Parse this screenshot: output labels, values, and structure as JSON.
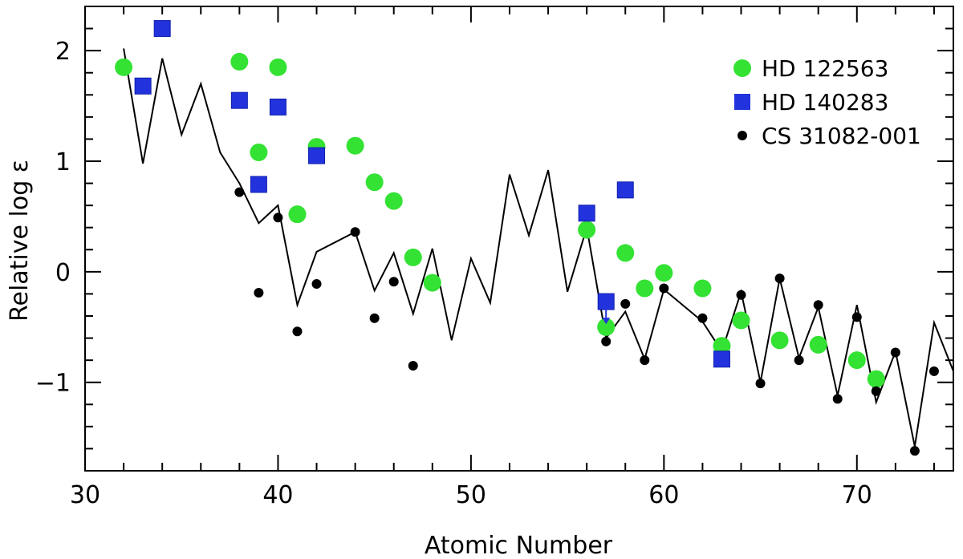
{
  "chart_data": {
    "type": "scatter",
    "xlabel": "Atomic Number",
    "ylabel": "Relative log ε",
    "xlim": [
      30,
      75
    ],
    "ylim": [
      -1.8,
      2.4
    ],
    "x_ticks": [
      30,
      40,
      50,
      60,
      70
    ],
    "y_ticks": [
      -1,
      0,
      1,
      2
    ],
    "y_tick_labels": [
      "−1",
      "0",
      "1",
      "2"
    ],
    "legend_position": "top-right",
    "series": [
      {
        "name": "HD 122563",
        "marker": "circle",
        "color": "#33e233",
        "points": [
          [
            32,
            1.85
          ],
          [
            38,
            1.9
          ],
          [
            39,
            1.08
          ],
          [
            40,
            1.85
          ],
          [
            41,
            0.52
          ],
          [
            42,
            1.13
          ],
          [
            44,
            1.14
          ],
          [
            45,
            0.81
          ],
          [
            46,
            0.64
          ],
          [
            47,
            0.13
          ],
          [
            48,
            -0.1
          ],
          [
            56,
            0.38
          ],
          [
            57,
            -0.5
          ],
          [
            58,
            0.17
          ],
          [
            59,
            -0.15
          ],
          [
            60,
            -0.01
          ],
          [
            62,
            -0.15
          ],
          [
            63,
            -0.67
          ],
          [
            64,
            -0.44
          ],
          [
            66,
            -0.62
          ],
          [
            68,
            -0.66
          ],
          [
            70,
            -0.8
          ],
          [
            71,
            -0.97
          ]
        ]
      },
      {
        "name": "HD 140283",
        "marker": "square",
        "color": "#2233dd",
        "points": [
          [
            33,
            1.68
          ],
          [
            34,
            2.2
          ],
          [
            38,
            1.55
          ],
          [
            39,
            0.79
          ],
          [
            40,
            1.49
          ],
          [
            42,
            1.05
          ],
          [
            56,
            0.53
          ],
          [
            57,
            -0.27
          ],
          [
            58,
            0.74
          ],
          [
            63,
            -0.79
          ]
        ]
      },
      {
        "name": "CS 31082-001",
        "marker": "dot",
        "color": "#000000",
        "points": [
          [
            38,
            0.72
          ],
          [
            39,
            -0.19
          ],
          [
            40,
            0.49
          ],
          [
            41,
            -0.54
          ],
          [
            42,
            -0.11
          ],
          [
            44,
            0.36
          ],
          [
            45,
            -0.42
          ],
          [
            46,
            -0.09
          ],
          [
            47,
            -0.85
          ],
          [
            57,
            -0.63
          ],
          [
            58,
            -0.29
          ],
          [
            59,
            -0.8
          ],
          [
            60,
            -0.15
          ],
          [
            62,
            -0.42
          ],
          [
            64,
            -0.21
          ],
          [
            65,
            -1.01
          ],
          [
            66,
            -0.06
          ],
          [
            67,
            -0.8
          ],
          [
            68,
            -0.3
          ],
          [
            69,
            -1.15
          ],
          [
            70,
            -0.41
          ],
          [
            71,
            -1.08
          ],
          [
            72,
            -0.73
          ],
          [
            73,
            -1.62
          ],
          [
            74,
            -0.9
          ]
        ]
      },
      {
        "name": "",
        "marker": "line",
        "color": "#000000",
        "points": [
          [
            32,
            2.02
          ],
          [
            33,
            0.98
          ],
          [
            34,
            1.93
          ],
          [
            35,
            1.24
          ],
          [
            36,
            1.7
          ],
          [
            37,
            1.08
          ],
          [
            38,
            0.8
          ],
          [
            39,
            0.44
          ],
          [
            40,
            0.6
          ],
          [
            41,
            -0.3
          ],
          [
            42,
            0.18
          ],
          [
            44,
            0.36
          ],
          [
            45,
            -0.17
          ],
          [
            46,
            0.17
          ],
          [
            47,
            -0.38
          ],
          [
            48,
            0.21
          ],
          [
            49,
            -0.62
          ],
          [
            50,
            0.12
          ],
          [
            51,
            -0.28
          ],
          [
            52,
            0.88
          ],
          [
            53,
            0.33
          ],
          [
            54,
            0.92
          ],
          [
            55,
            -0.18
          ],
          [
            56,
            0.4
          ],
          [
            57,
            -0.6
          ],
          [
            58,
            -0.36
          ],
          [
            59,
            -0.79
          ],
          [
            60,
            -0.16
          ],
          [
            62,
            -0.45
          ],
          [
            63,
            -0.72
          ],
          [
            64,
            -0.18
          ],
          [
            65,
            -1.0
          ],
          [
            66,
            -0.06
          ],
          [
            67,
            -0.78
          ],
          [
            68,
            -0.32
          ],
          [
            69,
            -1.12
          ],
          [
            70,
            -0.3
          ],
          [
            71,
            -1.18
          ],
          [
            72,
            -0.72
          ],
          [
            73,
            -1.58
          ],
          [
            74,
            -0.46
          ],
          [
            75,
            -0.9
          ]
        ]
      }
    ]
  }
}
